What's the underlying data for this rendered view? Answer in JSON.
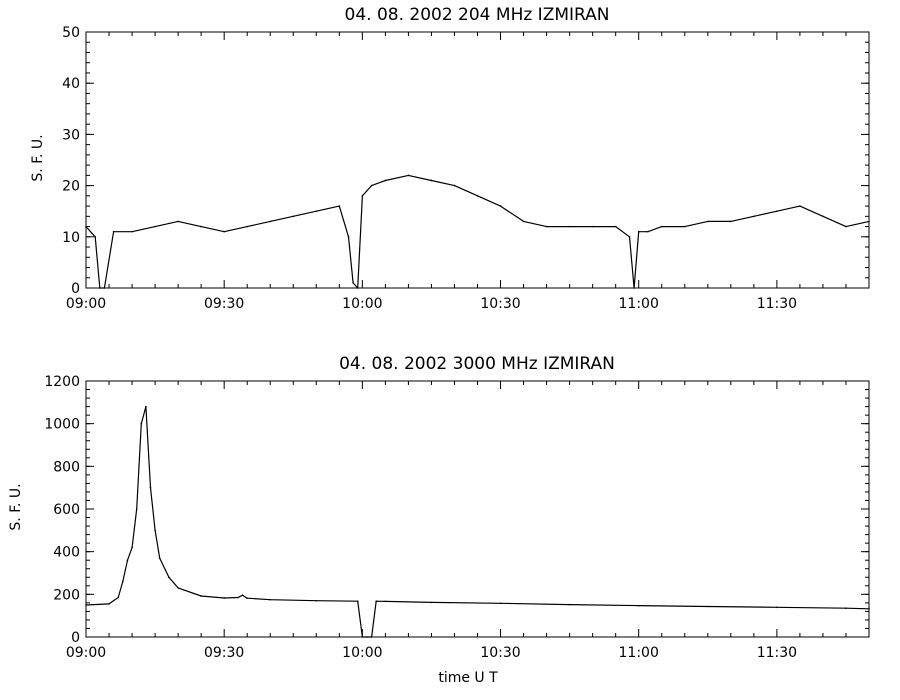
{
  "chart_data": [
    {
      "type": "line",
      "title": "04.  08.  2002    204 MHz    IZMIRAN",
      "ylabel": "S. F. U.",
      "xlabel": "",
      "xlim": [
        "09:00",
        "11:50"
      ],
      "ylim": [
        0,
        50
      ],
      "x_ticks": [
        "09:00",
        "09:30",
        "10:00",
        "10:30",
        "11:00",
        "11:30"
      ],
      "y_ticks": [
        "0",
        "10",
        "20",
        "30",
        "40",
        "50"
      ],
      "grid": false,
      "series": [
        {
          "x": [
            "09:00",
            "09:02",
            "09:03",
            "09:04",
            "09:06",
            "09:10",
            "09:15",
            "09:20",
            "09:25",
            "09:30",
            "09:35",
            "09:40",
            "09:45",
            "09:50",
            "09:55",
            "09:57",
            "09:58",
            "09:59",
            "10:00",
            "10:02",
            "10:05",
            "10:10",
            "10:15",
            "10:20",
            "10:25",
            "10:30",
            "10:35",
            "10:40",
            "10:45",
            "10:50",
            "10:55",
            "10:58",
            "10:59",
            "11:00",
            "11:02",
            "11:05",
            "11:10",
            "11:15",
            "11:20",
            "11:25",
            "11:30",
            "11:35",
            "11:40",
            "11:45",
            "11:50"
          ],
          "y": [
            12,
            10,
            0,
            0,
            11,
            11,
            12,
            13,
            12,
            11,
            12,
            13,
            14,
            15,
            16,
            10,
            1,
            0,
            18,
            20,
            21,
            22,
            21,
            20,
            18,
            16,
            13,
            12,
            12,
            12,
            12,
            10,
            0,
            11,
            11,
            12,
            12,
            13,
            13,
            14,
            15,
            16,
            14,
            12,
            13
          ]
        }
      ]
    },
    {
      "type": "line",
      "title": "04.  08.  2002    3000 MHz    IZMIRAN",
      "ylabel": "S. F. U.",
      "xlabel": "time   U T",
      "xlim": [
        "09:00",
        "11:50"
      ],
      "ylim": [
        0,
        1200
      ],
      "x_ticks": [
        "09:00",
        "09:30",
        "10:00",
        "10:30",
        "11:00",
        "11:30"
      ],
      "y_ticks": [
        "0",
        "200",
        "400",
        "600",
        "800",
        "1000",
        "1200"
      ],
      "grid": false,
      "series": [
        {
          "x": [
            "09:00",
            "09:05",
            "09:07",
            "09:08",
            "09:09",
            "09:10",
            "09:11",
            "09:12",
            "09:13",
            "09:14",
            "09:15",
            "09:16",
            "09:18",
            "09:20",
            "09:25",
            "09:30",
            "09:33",
            "09:34",
            "09:35",
            "09:40",
            "09:50",
            "09:59",
            "10:00",
            "10:01",
            "10:02",
            "10:03",
            "10:05",
            "10:15",
            "10:30",
            "10:45",
            "11:00",
            "11:15",
            "11:30",
            "11:45",
            "11:50"
          ],
          "y": [
            150,
            155,
            185,
            260,
            360,
            420,
            600,
            1000,
            1080,
            700,
            500,
            370,
            280,
            230,
            192,
            183,
            185,
            196,
            182,
            175,
            170,
            168,
            0,
            0,
            0,
            168,
            167,
            162,
            158,
            152,
            147,
            143,
            139,
            135,
            132
          ]
        }
      ]
    }
  ]
}
